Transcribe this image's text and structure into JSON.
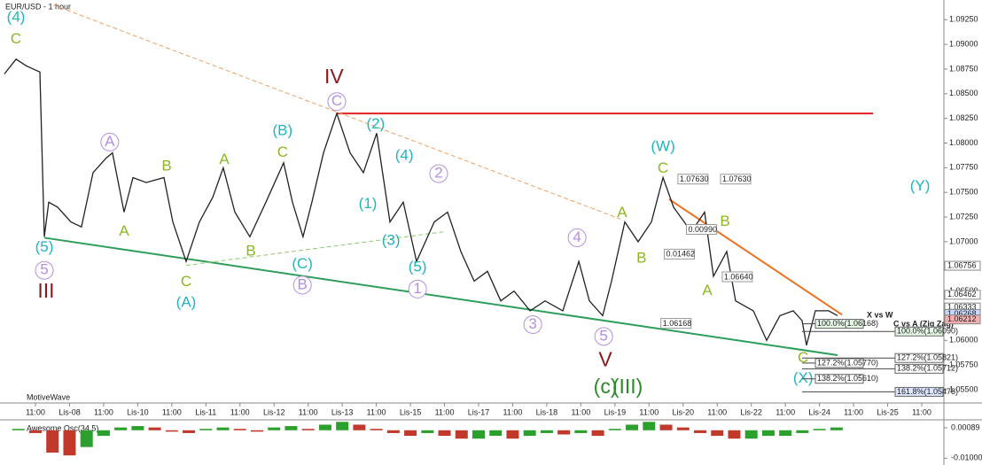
{
  "chart_data": {
    "type": "line",
    "title": "EUR/USD - 1 hour",
    "footer": "MotiveWave",
    "xlim": [
      -1.04,
      26.65
    ],
    "ylim": [
      1.05365,
      1.0945
    ],
    "xticks": [
      {
        "value": 0,
        "label": "11:00"
      },
      {
        "value": 1,
        "label": "Lis-08"
      },
      {
        "value": 2,
        "label": "11:00"
      },
      {
        "value": 3,
        "label": "Lis-10"
      },
      {
        "value": 4,
        "label": "11:00"
      },
      {
        "value": 5,
        "label": "Lis-11"
      },
      {
        "value": 6,
        "label": "11:00"
      },
      {
        "value": 7,
        "label": "Lis-12"
      },
      {
        "value": 8,
        "label": "11:00"
      },
      {
        "value": 9,
        "label": "Lis-13"
      },
      {
        "value": 10,
        "label": "11:00"
      },
      {
        "value": 11,
        "label": "Lis-15"
      },
      {
        "value": 12,
        "label": "11:00"
      },
      {
        "value": 13,
        "label": "Lis-17"
      },
      {
        "value": 14,
        "label": "11:00"
      },
      {
        "value": 15,
        "label": "Lis-18"
      },
      {
        "value": 16,
        "label": "11:00"
      },
      {
        "value": 17,
        "label": "Lis-19"
      },
      {
        "value": 18,
        "label": "11:00"
      },
      {
        "value": 19,
        "label": "Lis-20"
      },
      {
        "value": 20,
        "label": "11:00"
      },
      {
        "value": 21,
        "label": "Lis-22"
      },
      {
        "value": 22,
        "label": "11:00"
      },
      {
        "value": 23,
        "label": "Lis-24"
      },
      {
        "value": 24,
        "label": "11:00"
      },
      {
        "value": 25,
        "label": "Lis-25"
      },
      {
        "value": 26,
        "label": "11:00"
      }
    ],
    "yticks": [
      {
        "value": 1.055,
        "label": "1.05500"
      },
      {
        "value": 1.0575,
        "label": "1.05750"
      },
      {
        "value": 1.06,
        "label": "1.06000"
      },
      {
        "value": 1.0625,
        "label": "1.06250"
      },
      {
        "value": 1.065,
        "label": "1.06500"
      },
      {
        "value": 1.0675,
        "label": "1.06750"
      },
      {
        "value": 1.07,
        "label": "1.07000"
      },
      {
        "value": 1.0725,
        "label": "1.07250"
      },
      {
        "value": 1.075,
        "label": "1.07500"
      },
      {
        "value": 1.0775,
        "label": "1.07750"
      },
      {
        "value": 1.08,
        "label": "1.08000"
      },
      {
        "value": 1.0825,
        "label": "1.08250"
      },
      {
        "value": 1.085,
        "label": "1.08500"
      },
      {
        "value": 1.0875,
        "label": "1.08750"
      },
      {
        "value": 1.09,
        "label": "1.09000"
      },
      {
        "value": 1.0925,
        "label": "1.09250"
      }
    ],
    "series": [
      {
        "name": "EUR/USD",
        "color": "#222222",
        "x": [
          -0.91,
          -0.57,
          -0.26,
          0.13,
          0.26,
          0.39,
          0.65,
          1.04,
          1.35,
          1.69,
          2.08,
          2.26,
          2.6,
          2.86,
          3.25,
          3.77,
          4.03,
          4.42,
          4.81,
          5.2,
          5.51,
          5.85,
          6.29,
          6.76,
          7.28,
          7.54,
          7.85,
          8.11,
          8.45,
          8.84,
          9.23,
          9.62,
          10.01,
          10.4,
          10.79,
          11.18,
          11.7,
          12.09,
          12.48,
          12.87,
          13.26,
          13.65,
          14.04,
          14.51,
          14.95,
          15.47,
          15.94,
          16.25,
          16.64,
          16.9,
          17.29,
          17.68,
          18.07,
          18.41,
          18.72,
          19.24,
          19.63,
          19.89,
          20.28,
          20.54,
          21.06,
          21.45,
          21.84,
          22.23,
          22.49,
          22.62,
          22.88,
          23.27,
          23.53
        ],
        "values": [
          1.087,
          1.0885,
          1.0878,
          1.0872,
          1.0705,
          1.074,
          1.0735,
          1.072,
          1.0715,
          1.077,
          1.0785,
          1.079,
          1.073,
          1.0765,
          1.076,
          1.0765,
          1.072,
          1.068,
          1.072,
          1.0745,
          1.0775,
          1.073,
          1.0705,
          1.074,
          1.078,
          1.074,
          1.0705,
          1.074,
          1.079,
          1.083,
          1.079,
          1.077,
          1.081,
          1.072,
          1.074,
          1.068,
          1.072,
          1.073,
          1.069,
          1.066,
          1.067,
          1.064,
          1.065,
          1.063,
          1.064,
          1.063,
          1.068,
          1.064,
          1.0625,
          1.066,
          1.072,
          1.07,
          1.072,
          1.0765,
          1.0735,
          1.071,
          1.073,
          1.0665,
          1.069,
          1.064,
          1.063,
          1.06,
          1.0625,
          1.063,
          1.062,
          1.0595,
          1.063,
          1.063,
          1.0625
        ]
      }
    ],
    "trend_lines": [
      {
        "x": [
          0.26,
          23.53
        ],
        "y": [
          1.0704,
          1.0585
        ],
        "color": "#2e9e5b",
        "dash": false
      },
      {
        "x": [
          8.84,
          24.57
        ],
        "y": [
          1.083,
          1.083
        ],
        "color": "#e02020",
        "dash": false
      },
      {
        "x": [
          0.52,
          17.16
        ],
        "y": [
          1.094,
          1.0723
        ],
        "color": "#f0a060",
        "dash": true
      },
      {
        "x": [
          18.59,
          23.66
        ],
        "y": [
          1.0743,
          1.0626
        ],
        "color": "#f07020",
        "dash": false
      },
      {
        "x": [
          4.42,
          11.96
        ],
        "y": [
          1.0676,
          1.071
        ],
        "color": "#8cc870",
        "dash": true
      }
    ],
    "annotations": [
      {
        "text": "(4)",
        "x": -0.57,
        "y": 1.0927,
        "color": "#1fb5c0"
      },
      {
        "text": "C",
        "x": -0.57,
        "y": 1.0905,
        "color": "#8cb81e"
      },
      {
        "text": "(5)",
        "x": 0.26,
        "y": 1.0694,
        "color": "#1fb5c0"
      },
      {
        "text": "5",
        "x": 0.26,
        "y": 1.0671,
        "color": "#b48fe0",
        "circle": true
      },
      {
        "text": "III",
        "x": 0.31,
        "y": 1.0649,
        "color": "#8b1a1a"
      },
      {
        "text": "A",
        "x": 2.18,
        "y": 1.0801,
        "color": "#b48fe0",
        "circle": true
      },
      {
        "text": "A",
        "x": 2.6,
        "y": 1.071,
        "color": "#8cb81e"
      },
      {
        "text": "B",
        "x": 3.85,
        "y": 1.0776,
        "color": "#8cb81e"
      },
      {
        "text": "C",
        "x": 4.42,
        "y": 1.0659,
        "color": "#8cb81e"
      },
      {
        "text": "(A)",
        "x": 4.42,
        "y": 1.0638,
        "color": "#1fb5c0"
      },
      {
        "text": "A",
        "x": 5.54,
        "y": 1.0783,
        "color": "#8cb81e"
      },
      {
        "text": "B",
        "x": 6.32,
        "y": 1.069,
        "color": "#8cb81e"
      },
      {
        "text": "(B)",
        "x": 7.25,
        "y": 1.0812,
        "color": "#1fb5c0"
      },
      {
        "text": "C",
        "x": 7.25,
        "y": 1.079,
        "color": "#8cb81e"
      },
      {
        "text": "(C)",
        "x": 7.83,
        "y": 1.0677,
        "color": "#1fb5c0"
      },
      {
        "text": "B",
        "x": 7.83,
        "y": 1.0656,
        "color": "#b48fe0",
        "circle": true
      },
      {
        "text": "IV",
        "x": 8.76,
        "y": 1.0866,
        "color": "#8b1a1a"
      },
      {
        "text": "C",
        "x": 8.84,
        "y": 1.0842,
        "color": "#b48fe0",
        "circle": true
      },
      {
        "text": "(2)",
        "x": 9.98,
        "y": 1.0819,
        "color": "#1fb5c0"
      },
      {
        "text": "(1)",
        "x": 9.75,
        "y": 1.0738,
        "color": "#1fb5c0"
      },
      {
        "text": "(4)",
        "x": 10.82,
        "y": 1.0787,
        "color": "#1fb5c0"
      },
      {
        "text": "2",
        "x": 11.83,
        "y": 1.0769,
        "color": "#b48fe0",
        "circle": true
      },
      {
        "text": "(3)",
        "x": 10.43,
        "y": 1.0701,
        "color": "#1fb5c0"
      },
      {
        "text": "(5)",
        "x": 11.21,
        "y": 1.0674,
        "color": "#1fb5c0"
      },
      {
        "text": "1",
        "x": 11.21,
        "y": 1.0652,
        "color": "#b48fe0",
        "circle": true
      },
      {
        "text": "3",
        "x": 14.59,
        "y": 1.0616,
        "color": "#b48fe0",
        "circle": true
      },
      {
        "text": "4",
        "x": 15.89,
        "y": 1.0704,
        "color": "#b48fe0",
        "circle": true
      },
      {
        "text": "5",
        "x": 16.67,
        "y": 1.0604,
        "color": "#b48fe0",
        "circle": true
      },
      {
        "text": "V",
        "x": 16.72,
        "y": 1.0579,
        "color": "#8b1a1a"
      },
      {
        "text": "(c)",
        "x": 16.72,
        "y": 1.0552,
        "color": "#2a8a2a"
      },
      {
        "text": "(III)",
        "x": 17.37,
        "y": 1.0552,
        "color": "#2a8a2a"
      },
      {
        "text": "A",
        "x": 17.21,
        "y": 1.0729,
        "color": "#8cb81e"
      },
      {
        "text": "B",
        "x": 17.78,
        "y": 1.0683,
        "color": "#8cb81e"
      },
      {
        "text": "(W)",
        "x": 18.41,
        "y": 1.0796,
        "color": "#1fb5c0"
      },
      {
        "text": "C",
        "x": 18.41,
        "y": 1.0774,
        "color": "#8cb81e"
      },
      {
        "text": "B",
        "x": 20.23,
        "y": 1.072,
        "color": "#8cb81e"
      },
      {
        "text": "A",
        "x": 19.71,
        "y": 1.065,
        "color": "#8cb81e"
      },
      {
        "text": "(Y)",
        "x": 25.95,
        "y": 1.0756,
        "color": "#1fb5c0"
      },
      {
        "text": "C",
        "x": 22.52,
        "y": 1.0582,
        "color": "#8cb81e"
      },
      {
        "text": "(X)",
        "x": 22.52,
        "y": 1.0561,
        "color": "#1fb5c0"
      }
    ],
    "measurements": [
      {
        "label": "1.07630",
        "x": 18.9,
        "value": 1.0763
      },
      {
        "label": "1.07630",
        "x": 20.15,
        "value": 1.0763
      },
      {
        "label": "0.00990",
        "x": 19.15,
        "value": 1.0712
      },
      {
        "label": "0.01462",
        "x": 18.5,
        "value": 1.0687
      },
      {
        "label": "1.06168",
        "x": 18.4,
        "value": 1.06168
      },
      {
        "label": "1.06640",
        "x": 20.2,
        "value": 1.0664
      }
    ],
    "fib_sets": [
      {
        "name": "X vs W",
        "levels": [
          {
            "label": "100.0%(1.06168)",
            "value": 1.06168
          },
          {
            "label": "127.2%(1.05770)",
            "value": 1.0577
          },
          {
            "label": "138.2%(1.05610)",
            "value": 1.0561
          }
        ]
      },
      {
        "name": "C vs A (Zig Zag)",
        "levels": [
          {
            "label": "100.0%(1.06090)",
            "value": 1.0609
          },
          {
            "label": "127.2%(1.05821)",
            "value": 1.05821
          },
          {
            "label": "138.2%(1.05712)",
            "value": 1.05712
          },
          {
            "label": "161.8%(1.05478)",
            "value": 1.05478
          }
        ]
      }
    ],
    "price_tags": [
      {
        "label": "1.06756",
        "value": 1.06756,
        "color": "#ffffff"
      },
      {
        "label": "1.06462",
        "value": 1.06462,
        "color": "#ffffff"
      },
      {
        "label": "1.06333",
        "value": 1.06333,
        "color": "#ffffff"
      },
      {
        "label": "1.06268",
        "value": 1.06268,
        "color": "#c8d8ff"
      },
      {
        "label": "1.06212",
        "value": 1.06212,
        "color": "#f4b0b0"
      }
    ],
    "oscillator": {
      "name": "Awesome Osc(34,5)",
      "up_color": "#2ca02c",
      "down_color": "#c0392b",
      "ylim": [
        -0.0118,
        0.0031
      ],
      "yticks": [
        0.00089,
        {
          "value": -0.01,
          "label": "-0.01000"
        }
      ],
      "x": [
        -0.5,
        0,
        0.5,
        1,
        1.5,
        2,
        2.5,
        3,
        3.5,
        4,
        4.5,
        5,
        5.5,
        6,
        6.5,
        7,
        7.5,
        8,
        8.5,
        9,
        9.5,
        10,
        10.5,
        11,
        11.5,
        12,
        12.5,
        13,
        13.5,
        14,
        14.5,
        15,
        15.5,
        16,
        16.5,
        17,
        17.5,
        18,
        18.5,
        19,
        19.5,
        20,
        20.5,
        21,
        21.5,
        22,
        22.5,
        23,
        23.5
      ],
      "values": [
        0.0005,
        -0.001,
        -0.008,
        -0.009,
        -0.006,
        -0.002,
        0.001,
        0.0015,
        0.001,
        -0.0005,
        -0.001,
        0.0005,
        0.001,
        0.0005,
        -0.0005,
        0.001,
        0.0015,
        0.0005,
        0.002,
        0.003,
        0.002,
        0.0005,
        -0.001,
        -0.002,
        -0.001,
        -0.002,
        -0.003,
        -0.003,
        -0.002,
        -0.003,
        -0.002,
        -0.001,
        -0.0015,
        -0.001,
        -0.002,
        0.0005,
        0.002,
        0.003,
        0.002,
        0.001,
        -0.001,
        -0.002,
        -0.003,
        -0.003,
        -0.002,
        -0.002,
        -0.001,
        0.0005,
        0.001
      ]
    }
  }
}
